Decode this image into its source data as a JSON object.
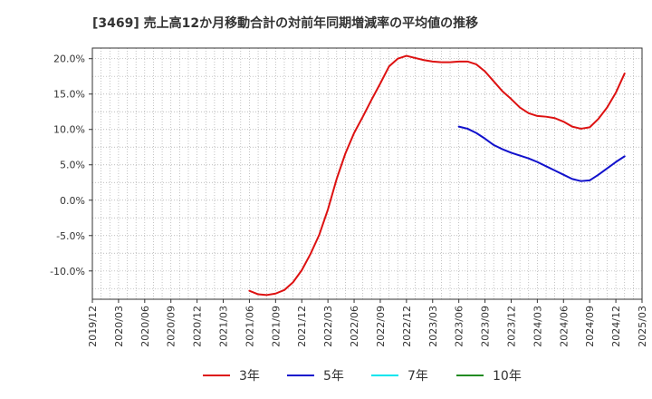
{
  "chart_data": {
    "type": "line",
    "title": "[3469]  売上高12か月移動合計の対前年同期増減率の平均値の推移",
    "xlabel": "",
    "ylabel": "",
    "ylim": [
      -14.0,
      21.5
    ],
    "y_ticks": [
      20,
      15,
      10,
      5,
      0,
      -5,
      -10
    ],
    "y_tick_labels": [
      "20.0%",
      "15.0%",
      "10.0%",
      "5.0%",
      "0.0%",
      "-5.0%",
      "-10.0%"
    ],
    "x_tick_labels": [
      "2019/12",
      "2020/03",
      "2020/06",
      "2020/09",
      "2020/12",
      "2021/03",
      "2021/06",
      "2021/09",
      "2021/12",
      "2022/03",
      "2022/06",
      "2022/09",
      "2022/12",
      "2023/03",
      "2023/06",
      "2023/09",
      "2023/12",
      "2024/03",
      "2024/06",
      "2024/09",
      "2024/12",
      "2025/03"
    ],
    "grid": true,
    "legend_position": "bottom",
    "series": [
      {
        "name": "3年",
        "color": "#dd1111",
        "points": [
          [
            18,
            -12.8
          ],
          [
            19,
            -13.3
          ],
          [
            20,
            -13.4
          ],
          [
            21,
            -13.2
          ],
          [
            22,
            -12.7
          ],
          [
            23,
            -11.6
          ],
          [
            24,
            -9.9
          ],
          [
            25,
            -7.6
          ],
          [
            26,
            -4.9
          ],
          [
            27,
            -1.3
          ],
          [
            28,
            3.0
          ],
          [
            29,
            6.6
          ],
          [
            30,
            9.5
          ],
          [
            31,
            11.8
          ],
          [
            32,
            14.2
          ],
          [
            33,
            16.5
          ],
          [
            34,
            18.9
          ],
          [
            35,
            20.0
          ],
          [
            36,
            20.4
          ],
          [
            37,
            20.1
          ],
          [
            38,
            19.8
          ],
          [
            39,
            19.6
          ],
          [
            40,
            19.5
          ],
          [
            41,
            19.5
          ],
          [
            42,
            19.6
          ],
          [
            43,
            19.6
          ],
          [
            44,
            19.2
          ],
          [
            45,
            18.2
          ],
          [
            46,
            16.8
          ],
          [
            47,
            15.4
          ],
          [
            48,
            14.3
          ],
          [
            49,
            13.1
          ],
          [
            50,
            12.3
          ],
          [
            51,
            11.9
          ],
          [
            52,
            11.8
          ],
          [
            53,
            11.6
          ],
          [
            54,
            11.1
          ],
          [
            55,
            10.4
          ],
          [
            56,
            10.1
          ],
          [
            57,
            10.3
          ],
          [
            58,
            11.5
          ],
          [
            59,
            13.1
          ],
          [
            60,
            15.2
          ],
          [
            61,
            17.9
          ]
        ]
      },
      {
        "name": "5年",
        "color": "#1111cc",
        "points": [
          [
            42,
            10.4
          ],
          [
            43,
            10.1
          ],
          [
            44,
            9.5
          ],
          [
            45,
            8.7
          ],
          [
            46,
            7.8
          ],
          [
            47,
            7.2
          ],
          [
            48,
            6.7
          ],
          [
            49,
            6.3
          ],
          [
            50,
            5.9
          ],
          [
            51,
            5.4
          ],
          [
            52,
            4.8
          ],
          [
            53,
            4.2
          ],
          [
            54,
            3.6
          ],
          [
            55,
            3.0
          ],
          [
            56,
            2.7
          ],
          [
            57,
            2.8
          ],
          [
            58,
            3.6
          ],
          [
            59,
            4.5
          ],
          [
            60,
            5.4
          ],
          [
            61,
            6.2
          ]
        ]
      },
      {
        "name": "7年",
        "color": "#00e5ee",
        "points": []
      },
      {
        "name": "10年",
        "color": "#228b22",
        "points": []
      }
    ]
  }
}
